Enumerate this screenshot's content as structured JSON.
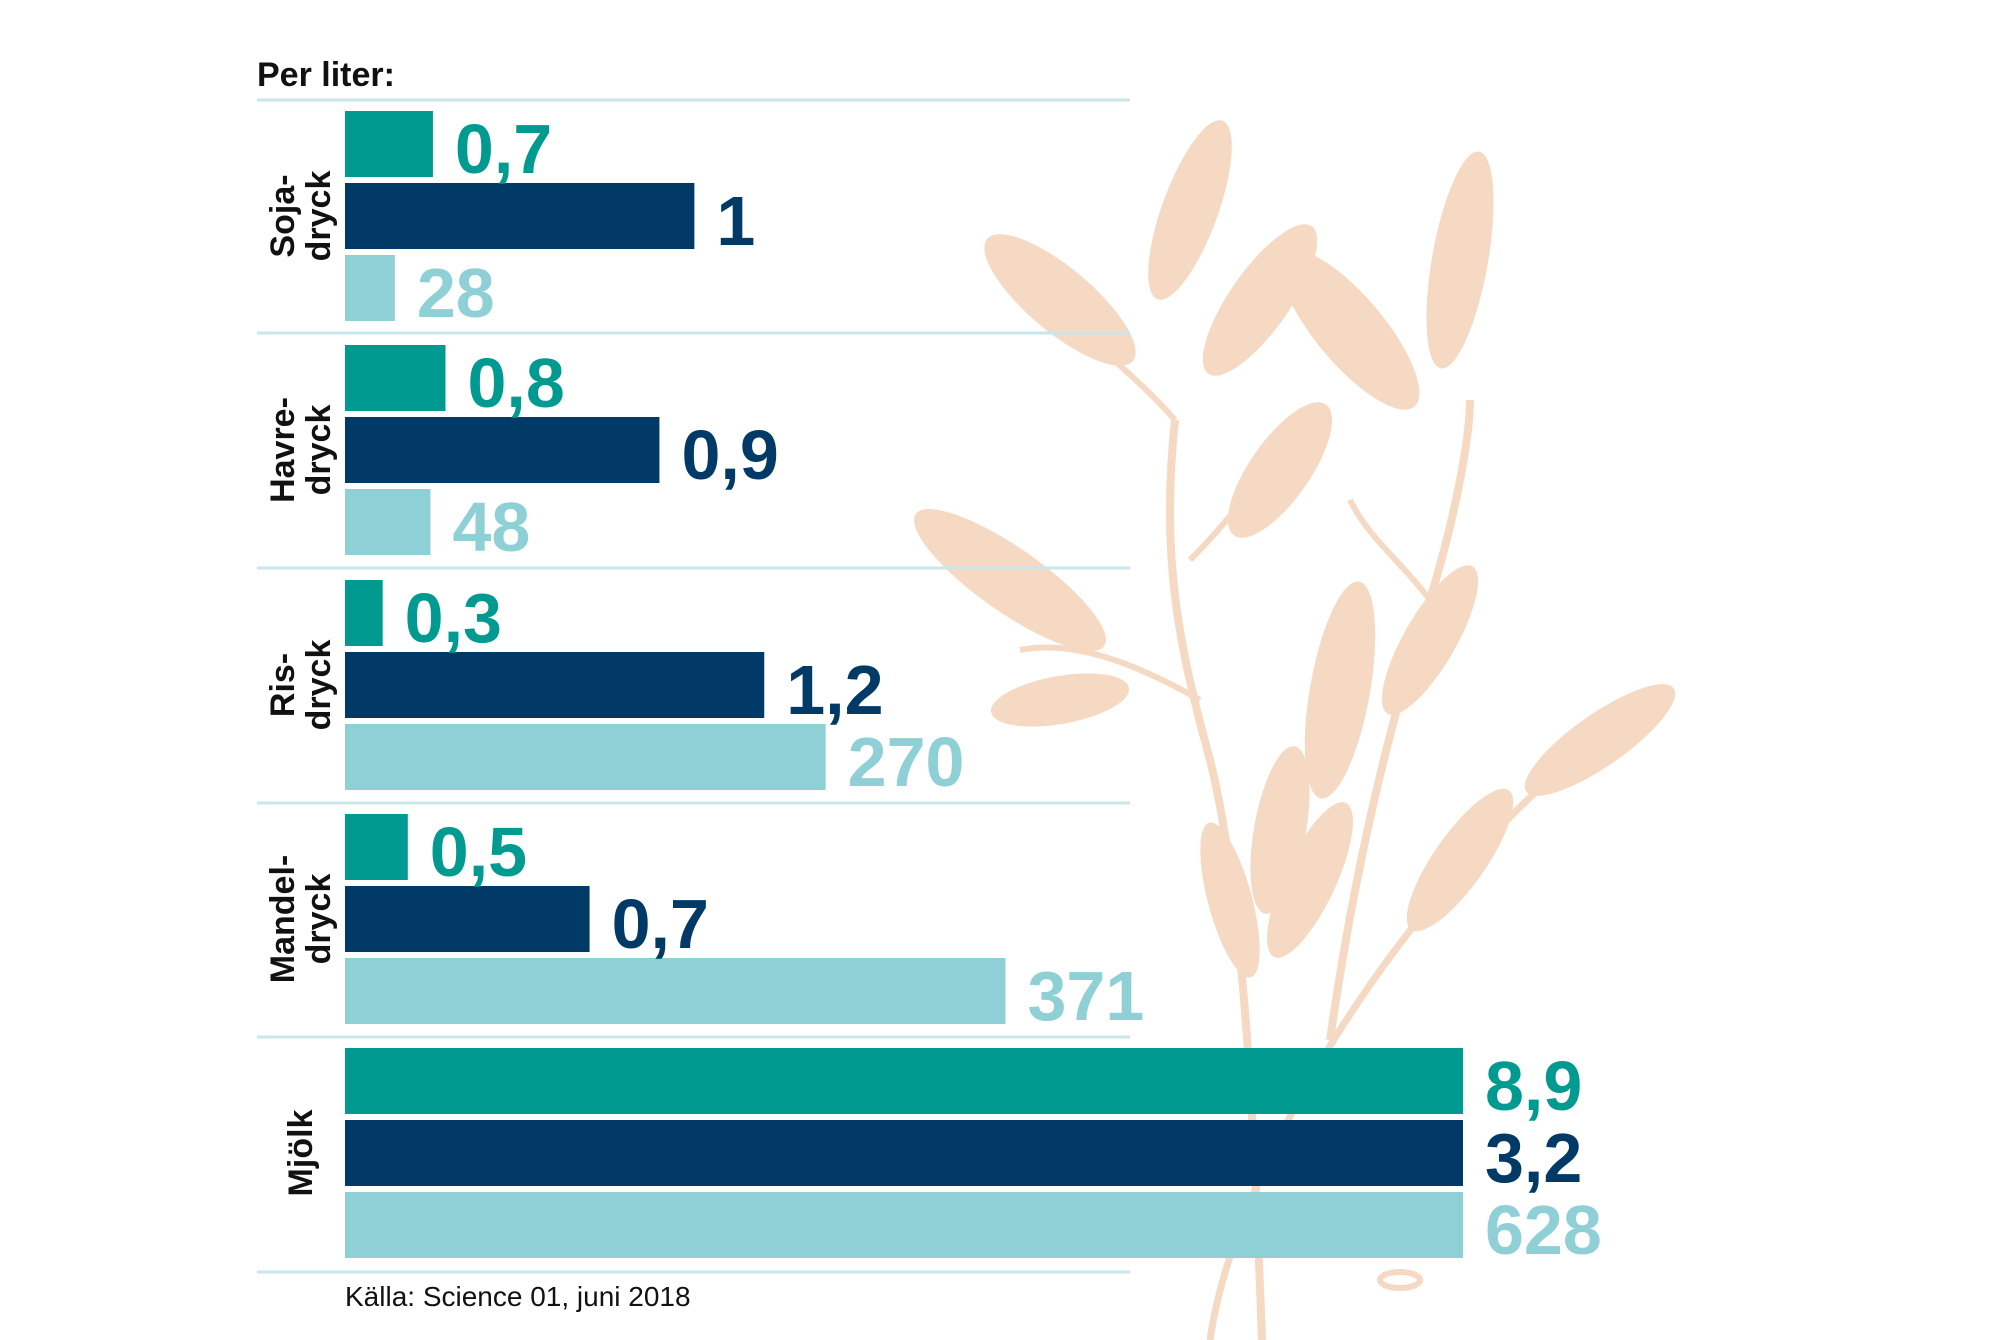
{
  "heading": "Per liter:",
  "source": "Källa: Science 01, juni 2018",
  "colors": {
    "series_1": "#009a91",
    "series_2": "#013a66",
    "series_3": "#8fd0d6",
    "separator": "#c9e6ea",
    "plant": "#f6d9c2"
  },
  "chart_data": {
    "type": "bar",
    "orientation": "horizontal",
    "grid": false,
    "legend": "none",
    "categories": [
      {
        "line1": "Soja-",
        "line2": "dryck"
      },
      {
        "line1": "Havre-",
        "line2": "dryck"
      },
      {
        "line1": "Ris-",
        "line2": "dryck"
      },
      {
        "line1": "Mandel-",
        "line2": "dryck"
      },
      {
        "line1": "Mjölk",
        "line2": ""
      }
    ],
    "series": [
      {
        "values": [
          0.7,
          0.8,
          0.3,
          0.5,
          8.9
        ],
        "labels": [
          "0,7",
          "0,8",
          "0,3",
          "0,5",
          "8,9"
        ],
        "color": "#009a91"
      },
      {
        "values": [
          1,
          0.9,
          1.2,
          0.7,
          3.2
        ],
        "labels": [
          "1",
          "0,9",
          "1,2",
          "0,7",
          "3,2"
        ],
        "color": "#013a66"
      },
      {
        "values": [
          28,
          48,
          270,
          371,
          628
        ],
        "labels": [
          "28",
          "48",
          "270",
          "371",
          "628"
        ],
        "color": "#8fd0d6"
      }
    ]
  }
}
